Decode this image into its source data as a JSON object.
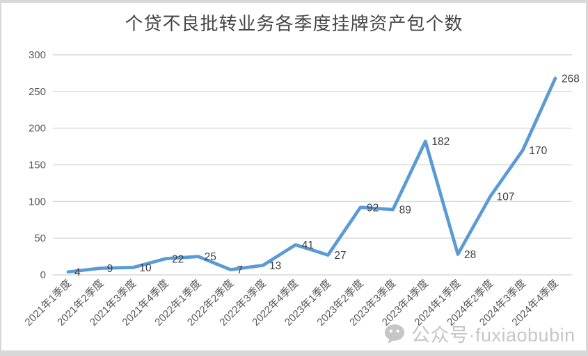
{
  "title": "个贷不良批转业务各季度挂牌资产包个数",
  "watermark": {
    "icon": "wechat-icon",
    "text": "公众号·fuxiaobubin",
    "color": "#c6c6c6"
  },
  "chart_data": {
    "type": "line",
    "title": "个贷不良批转业务各季度挂牌资产包个数",
    "categories": [
      "2021年1季度",
      "2021年2季度",
      "2021年3季度",
      "2021年4季度",
      "2022年1季度",
      "2022年2季度",
      "2022年3季度",
      "2022年4季度",
      "2023年1季度",
      "2023年2季度",
      "2023年3季度",
      "2023年4季度",
      "2024年1季度",
      "2024年2季度",
      "2024年3季度",
      "2024年4季度"
    ],
    "values": [
      4,
      9,
      10,
      22,
      25,
      7,
      13,
      41,
      27,
      92,
      89,
      182,
      28,
      107,
      170,
      268
    ],
    "data_labels": true,
    "xlabel": "",
    "ylabel": "",
    "ylim": [
      0,
      300
    ],
    "yticks": [
      0,
      50,
      100,
      150,
      200,
      250,
      300
    ],
    "grid": true,
    "legend": "none",
    "series_color": "#5B9BD5",
    "gridline_color": "#d9d9d9",
    "tick_label_color": "#595959",
    "data_label_color": "#404040"
  }
}
